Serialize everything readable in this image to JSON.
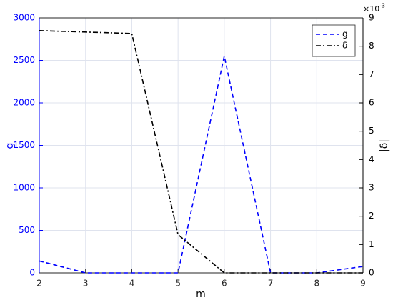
{
  "chart_data": {
    "type": "line",
    "x_label": "m",
    "y_label": "g",
    "y2_label": "|δ|",
    "y2_exponent_base": "×10",
    "y2_exponent": "-3",
    "x": [
      2,
      3,
      4,
      5,
      6,
      7,
      8,
      9
    ],
    "series": [
      {
        "name": "g",
        "color": "#0000ff",
        "linestyle": "dashed",
        "values": [
          140,
          0,
          0,
          0,
          2550,
          0,
          0,
          75
        ]
      },
      {
        "name": "δ",
        "color": "#000000",
        "linestyle": "dashdot",
        "axis": "y2",
        "values": [
          8.55,
          8.5,
          8.45,
          1.35,
          0,
          0,
          0,
          0
        ]
      }
    ],
    "xlim": [
      2,
      9
    ],
    "xticks": [
      2,
      3,
      4,
      5,
      6,
      7,
      8,
      9
    ],
    "ylim": [
      0,
      3000
    ],
    "yticks": [
      0,
      500,
      1000,
      1500,
      2000,
      2500,
      3000
    ],
    "y2lim": [
      0,
      9
    ],
    "y2ticks": [
      0,
      1,
      2,
      3,
      4,
      5,
      6,
      7,
      8,
      9
    ],
    "grid": true,
    "legend": "upper right"
  }
}
